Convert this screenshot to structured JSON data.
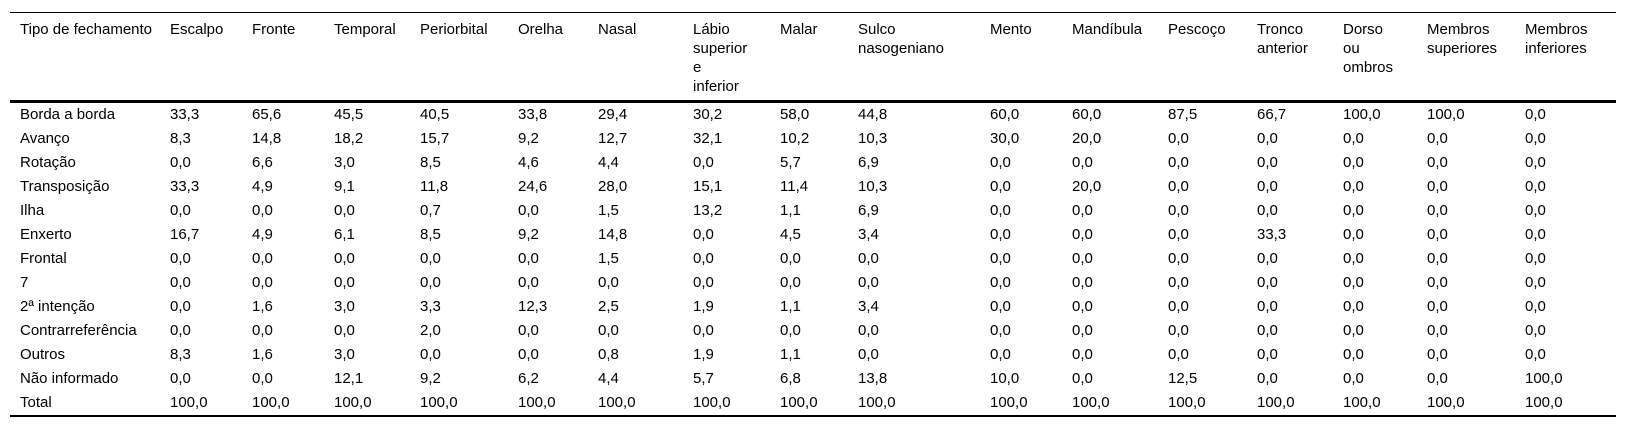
{
  "table": {
    "corner_label": "Tipo de fechamento",
    "columns": [
      "Escalpo",
      "Fronte",
      "Temporal",
      "Periorbital",
      "Orelha",
      "Nasal",
      "Lábio\nsuperior\ne\ninferior",
      "Malar",
      "Sulco\nnasogeniano",
      "Mento",
      "Mandíbula",
      "Pescoço",
      "Tronco\nanterior",
      "Dorso\nou\nombros",
      "Membros\nsuperiores",
      "Membros\ninferiores"
    ],
    "rows": [
      {
        "label": "Borda a borda",
        "values": [
          "33,3",
          "65,6",
          "45,5",
          "40,5",
          "33,8",
          "29,4",
          "30,2",
          "58,0",
          "44,8",
          "60,0",
          "60,0",
          "87,5",
          "66,7",
          "100,0",
          "100,0",
          "0,0"
        ]
      },
      {
        "label": "Avanço",
        "values": [
          "8,3",
          "14,8",
          "18,2",
          "15,7",
          "9,2",
          "12,7",
          "32,1",
          "10,2",
          "10,3",
          "30,0",
          "20,0",
          "0,0",
          "0,0",
          "0,0",
          "0,0",
          "0,0"
        ]
      },
      {
        "label": "Rotação",
        "values": [
          "0,0",
          "6,6",
          "3,0",
          "8,5",
          "4,6",
          "4,4",
          "0,0",
          "5,7",
          "6,9",
          "0,0",
          "0,0",
          "0,0",
          "0,0",
          "0,0",
          "0,0",
          "0,0"
        ]
      },
      {
        "label": "Transposição",
        "values": [
          "33,3",
          "4,9",
          "9,1",
          "11,8",
          "24,6",
          "28,0",
          "15,1",
          "11,4",
          "10,3",
          "0,0",
          "20,0",
          "0,0",
          "0,0",
          "0,0",
          "0,0",
          "0,0"
        ]
      },
      {
        "label": "Ilha",
        "values": [
          "0,0",
          "0,0",
          "0,0",
          "0,7",
          "0,0",
          "1,5",
          "13,2",
          "1,1",
          "6,9",
          "0,0",
          "0,0",
          "0,0",
          "0,0",
          "0,0",
          "0,0",
          "0,0"
        ]
      },
      {
        "label": "Enxerto",
        "values": [
          "16,7",
          "4,9",
          "6,1",
          "8,5",
          "9,2",
          "14,8",
          "0,0",
          "4,5",
          "3,4",
          "0,0",
          "0,0",
          "0,0",
          "33,3",
          "0,0",
          "0,0",
          "0,0"
        ]
      },
      {
        "label": "Frontal",
        "values": [
          "0,0",
          "0,0",
          "0,0",
          "0,0",
          "0,0",
          "1,5",
          "0,0",
          "0,0",
          "0,0",
          "0,0",
          "0,0",
          "0,0",
          "0,0",
          "0,0",
          "0,0",
          "0,0"
        ]
      },
      {
        "label": "7",
        "values": [
          "0,0",
          "0,0",
          "0,0",
          "0,0",
          "0,0",
          "0,0",
          "0,0",
          "0,0",
          "0,0",
          "0,0",
          "0,0",
          "0,0",
          "0,0",
          "0,0",
          "0,0",
          "0,0"
        ]
      },
      {
        "label": "2ª intenção",
        "values": [
          "0,0",
          "1,6",
          "3,0",
          "3,3",
          "12,3",
          "2,5",
          "1,9",
          "1,1",
          "3,4",
          "0,0",
          "0,0",
          "0,0",
          "0,0",
          "0,0",
          "0,0",
          "0,0"
        ]
      },
      {
        "label": "Contrarreferência",
        "values": [
          "0,0",
          "0,0",
          "0,0",
          "2,0",
          "0,0",
          "0,0",
          "0,0",
          "0,0",
          "0,0",
          "0,0",
          "0,0",
          "0,0",
          "0,0",
          "0,0",
          "0,0",
          "0,0"
        ]
      },
      {
        "label": "Outros",
        "values": [
          "8,3",
          "1,6",
          "3,0",
          "0,0",
          "0,0",
          "0,8",
          "1,9",
          "1,1",
          "0,0",
          "0,0",
          "0,0",
          "0,0",
          "0,0",
          "0,0",
          "0,0",
          "0,0"
        ]
      },
      {
        "label": "Não informado",
        "values": [
          "0,0",
          "0,0",
          "12,1",
          "9,2",
          "6,2",
          "4,4",
          "5,7",
          "6,8",
          "13,8",
          "10,0",
          "0,0",
          "12,5",
          "0,0",
          "0,0",
          "0,0",
          "100,0"
        ]
      },
      {
        "label": "Total",
        "values": [
          "100,0",
          "100,0",
          "100,0",
          "100,0",
          "100,0",
          "100,0",
          "100,0",
          "100,0",
          "100,0",
          "100,0",
          "100,0",
          "100,0",
          "100,0",
          "100,0",
          "100,0",
          "100,0"
        ]
      }
    ]
  },
  "colors": {
    "text": "#000000",
    "background": "#ffffff",
    "rule": "#000000"
  }
}
